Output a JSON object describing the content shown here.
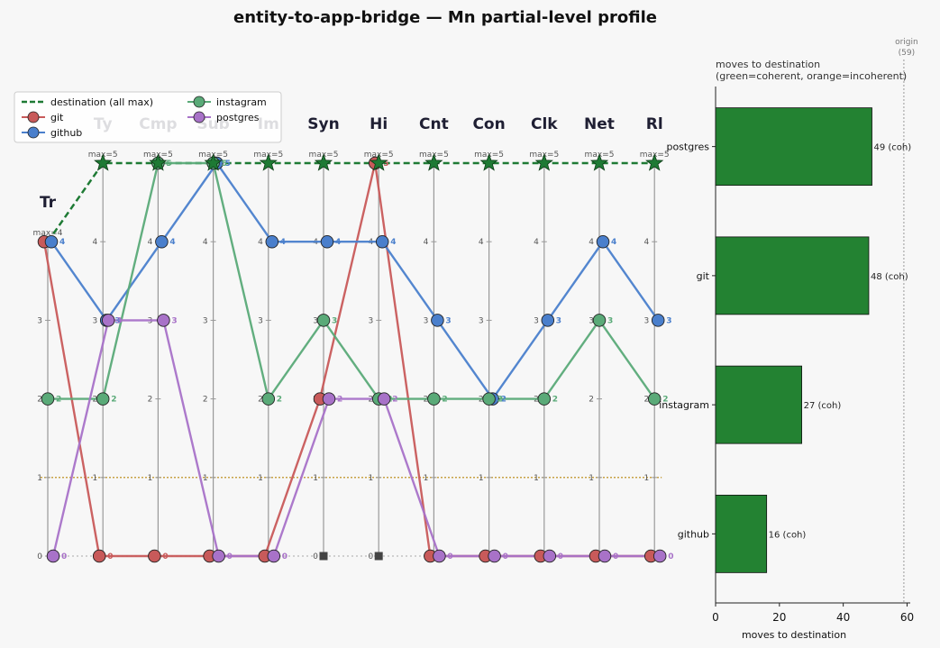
{
  "chart_data": [
    {
      "type": "line",
      "title": "entity-to-app-bridge — Mn partial-level profile",
      "axes": [
        "Tr",
        "Ty",
        "Cmp",
        "Sub",
        "Im",
        "Syn",
        "Hi",
        "Cnt",
        "Con",
        "Clk",
        "Net",
        "Rl"
      ],
      "axis_max_labels": [
        "max=4",
        "max=5",
        "max=5",
        "max=5",
        "max=5",
        "max=5",
        "max=5",
        "max=5",
        "max=5",
        "max=5",
        "max=5",
        "max=5"
      ],
      "ylim": [
        0,
        5
      ],
      "yticks": [
        "0",
        "1",
        "2",
        "3",
        "4",
        "5"
      ],
      "reference_line_level": 1,
      "empty_axes": [
        "Syn",
        "Hi"
      ],
      "destination": {
        "name": "destination (all max)",
        "values": [
          4,
          5,
          5,
          5,
          5,
          5,
          5,
          5,
          5,
          5,
          5,
          5
        ],
        "color": "#1e7a34"
      },
      "series": [
        {
          "name": "git",
          "color": "#c85a5a",
          "values": [
            4,
            0,
            0,
            0,
            0,
            2,
            5,
            0,
            0,
            0,
            0,
            0
          ]
        },
        {
          "name": "github",
          "color": "#4a7fcc",
          "values": [
            4,
            3,
            4,
            5,
            4,
            4,
            4,
            3,
            2,
            3,
            4,
            3
          ]
        },
        {
          "name": "instagram",
          "color": "#5aaa78",
          "values": [
            2,
            2,
            5,
            5,
            2,
            3,
            2,
            2,
            2,
            2,
            3,
            2
          ]
        },
        {
          "name": "postgres",
          "color": "#a872c8",
          "values": [
            0,
            3,
            3,
            0,
            0,
            2,
            2,
            0,
            0,
            0,
            0,
            0
          ]
        }
      ],
      "legend_placement": "top-left"
    },
    {
      "type": "bar",
      "orientation": "horizontal",
      "title_lines": [
        "moves to destination",
        "(green=coherent, orange=incoherent)"
      ],
      "categories": [
        "postgres",
        "git",
        "instagram",
        "github"
      ],
      "values": [
        49,
        48,
        27,
        16
      ],
      "bar_labels": [
        "49  (coh)",
        "48  (coh)",
        "27  (coh)",
        "16  (coh)"
      ],
      "xlabel": "moves to destination",
      "xlim": [
        0,
        61
      ],
      "xticks": [
        "0",
        "20",
        "40",
        "60"
      ],
      "reference": {
        "value": 59,
        "label_lines": [
          "origin",
          "(59)"
        ]
      },
      "bar_color": "#238232"
    }
  ]
}
